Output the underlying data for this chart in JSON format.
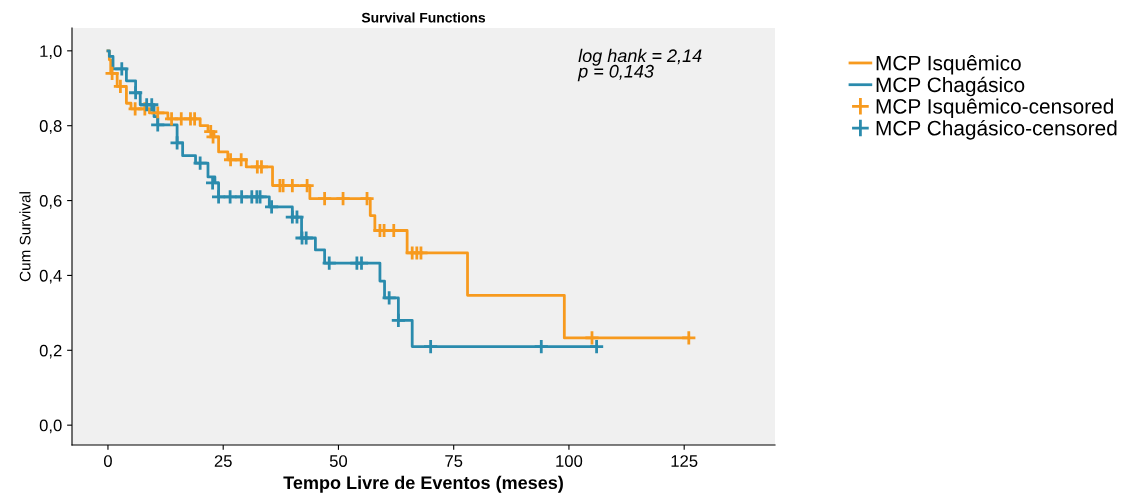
{
  "chart_data": {
    "type": "step",
    "title": "Survival Functions",
    "xlabel": "Tempo Livre de Eventos (meses)",
    "ylabel": "Cum Survival",
    "annotations": [
      "log hank = 2,14\np = 0,143"
    ],
    "xlim": [
      -7.8,
      144.7
    ],
    "xticks": [
      0,
      25,
      50,
      75,
      100,
      125
    ],
    "ylim": [
      -0.053,
      1.061
    ],
    "yticks": [
      {
        "value": 0,
        "label": "0,0"
      },
      {
        "value": 0.2,
        "label": "0,2"
      },
      {
        "value": 0.4,
        "label": "0,4"
      },
      {
        "value": 0.6,
        "label": "0,6"
      },
      {
        "value": 0.8,
        "label": "0,8"
      },
      {
        "value": 1.0,
        "label": "1,0"
      }
    ],
    "grid": false,
    "legend": "right",
    "series": [
      {
        "name": "MCP Isquêmico",
        "color": "#f79a1e",
        "x": [
          0,
          0.3,
          0.6,
          2,
          4,
          5,
          9,
          13,
          20,
          21.7,
          23,
          24,
          26,
          30,
          35.7,
          43.8,
          56.9,
          57.9,
          64.9,
          78,
          99,
          126
        ],
        "values": [
          1.0,
          0.976,
          0.94,
          0.905,
          0.86,
          0.845,
          0.834,
          0.818,
          0.8,
          0.784,
          0.77,
          0.73,
          0.709,
          0.69,
          0.64,
          0.605,
          0.56,
          0.52,
          0.46,
          0.347,
          0.233,
          0.233
        ]
      },
      {
        "name": "MCP Chagásico",
        "color": "#2a8bad",
        "x": [
          0,
          0.3,
          1.1,
          4,
          6,
          7,
          10,
          10.8,
          15,
          16.2,
          19,
          21.7,
          23.2,
          24,
          35,
          40,
          42,
          45,
          47,
          59,
          60,
          63,
          66,
          106
        ],
        "values": [
          1.0,
          0.985,
          0.952,
          0.92,
          0.888,
          0.856,
          0.824,
          0.802,
          0.754,
          0.72,
          0.7,
          0.663,
          0.647,
          0.61,
          0.583,
          0.556,
          0.5,
          0.468,
          0.433,
          0.385,
          0.34,
          0.28,
          0.21,
          0.21
        ]
      },
      {
        "name": "MCP Isquêmico-censored",
        "type": "scatter",
        "marker": "cross",
        "color": "#f79a1e",
        "x": [
          0.9,
          2.7,
          5.9,
          8,
          10.8,
          13.8,
          15.9,
          17.9,
          18.8,
          22.3,
          22.8,
          26.6,
          28.9,
          32.4,
          33.3,
          37.3,
          38,
          40,
          43.2,
          47,
          51,
          56.2,
          59,
          59.9,
          62,
          66,
          67,
          67.9,
          105,
          126
        ],
        "values": [
          0.94,
          0.905,
          0.845,
          0.845,
          0.834,
          0.818,
          0.818,
          0.818,
          0.818,
          0.784,
          0.77,
          0.709,
          0.709,
          0.69,
          0.69,
          0.64,
          0.64,
          0.64,
          0.64,
          0.605,
          0.605,
          0.605,
          0.52,
          0.52,
          0.52,
          0.46,
          0.46,
          0.46,
          0.233,
          0.233
        ]
      },
      {
        "name": "MCP Chagásico-censored",
        "type": "scatter",
        "marker": "cross",
        "color": "#2a8bad",
        "x": [
          3,
          6,
          8.4,
          9.5,
          10.8,
          15,
          20,
          22.7,
          24,
          26.5,
          29,
          31.2,
          32.3,
          33,
          35.5,
          40,
          41,
          42.1,
          43,
          48,
          54,
          55,
          61,
          63,
          70,
          94,
          106
        ],
        "values": [
          0.952,
          0.888,
          0.856,
          0.856,
          0.802,
          0.754,
          0.7,
          0.647,
          0.61,
          0.61,
          0.61,
          0.61,
          0.61,
          0.61,
          0.583,
          0.556,
          0.556,
          0.5,
          0.5,
          0.433,
          0.433,
          0.433,
          0.34,
          0.28,
          0.21,
          0.21,
          0.21
        ]
      }
    ]
  }
}
